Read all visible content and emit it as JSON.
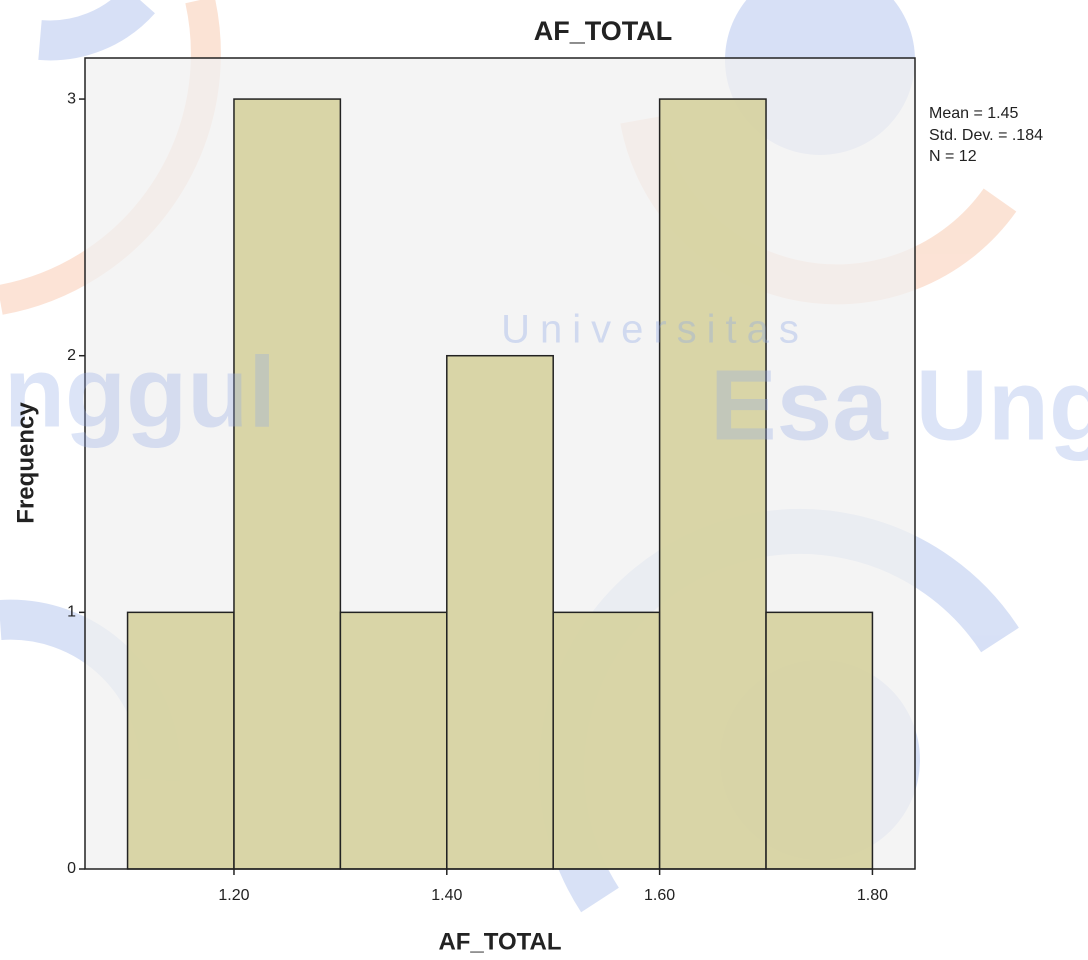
{
  "chart_data": {
    "type": "histogram",
    "title": "AF_TOTAL",
    "x_label": "AF_TOTAL",
    "y_label": "Frequency",
    "bins": [
      1.1,
      1.2,
      1.3,
      1.4,
      1.5,
      1.6,
      1.7,
      1.8
    ],
    "counts": [
      1,
      3,
      1,
      2,
      1,
      3,
      1
    ],
    "color": "#d6d29e",
    "plot_background": "#f0f0f0",
    "xlim": [
      1.06,
      1.84
    ],
    "ylim": [
      0,
      3.16
    ],
    "xticks": [
      {
        "value": 1.2,
        "label": "1.20"
      },
      {
        "value": 1.4,
        "label": "1.40"
      },
      {
        "value": 1.6,
        "label": "1.60"
      },
      {
        "value": 1.8,
        "label": "1.80"
      }
    ],
    "yticks": [
      0,
      1,
      2,
      3
    ],
    "annotations": [
      "Mean = 1.45",
      "Std. Dev. = .184",
      "N = 12"
    ],
    "watermark": [
      "Universitas",
      "Esa Unggul",
      "nggul"
    ]
  }
}
